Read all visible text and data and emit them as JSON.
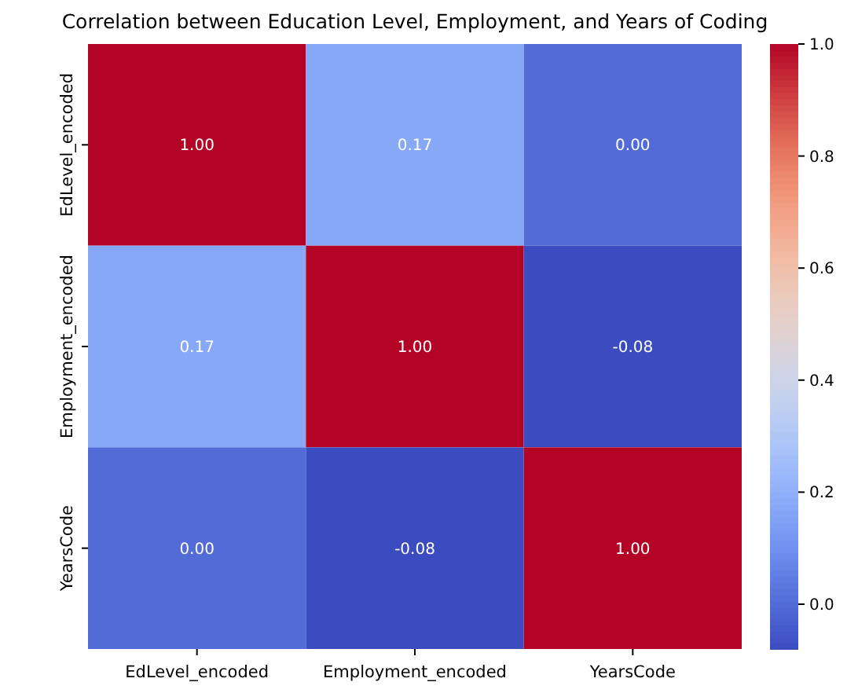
{
  "chart_data": {
    "type": "heatmap",
    "title": "Correlation between Education Level, Employment, and Years of Coding",
    "categories": [
      "EdLevel_encoded",
      "Employment_encoded",
      "YearsCode"
    ],
    "y_categories": [
      "EdLevel_encoded",
      "Employment_encoded",
      "YearsCode"
    ],
    "cells": [
      [
        1.0,
        0.17,
        0.0
      ],
      [
        0.17,
        1.0,
        -0.08
      ],
      [
        0.0,
        -0.08,
        1.0
      ]
    ],
    "cell_labels": [
      [
        "1.00",
        "0.17",
        "0.00"
      ],
      [
        "0.17",
        "1.00",
        "-0.08"
      ],
      [
        "0.00",
        "-0.08",
        "1.00"
      ]
    ],
    "clim": [
      -0.08,
      1.0
    ],
    "cticks": [
      {
        "value": 0,
        "label": "0.0"
      },
      {
        "value": 0.2,
        "label": "0.2"
      },
      {
        "value": 0.4,
        "label": "0.4"
      },
      {
        "value": 0.6,
        "label": "0.6"
      },
      {
        "value": 0.8,
        "label": "0.8"
      },
      {
        "value": 1,
        "label": "1.0"
      }
    ]
  }
}
